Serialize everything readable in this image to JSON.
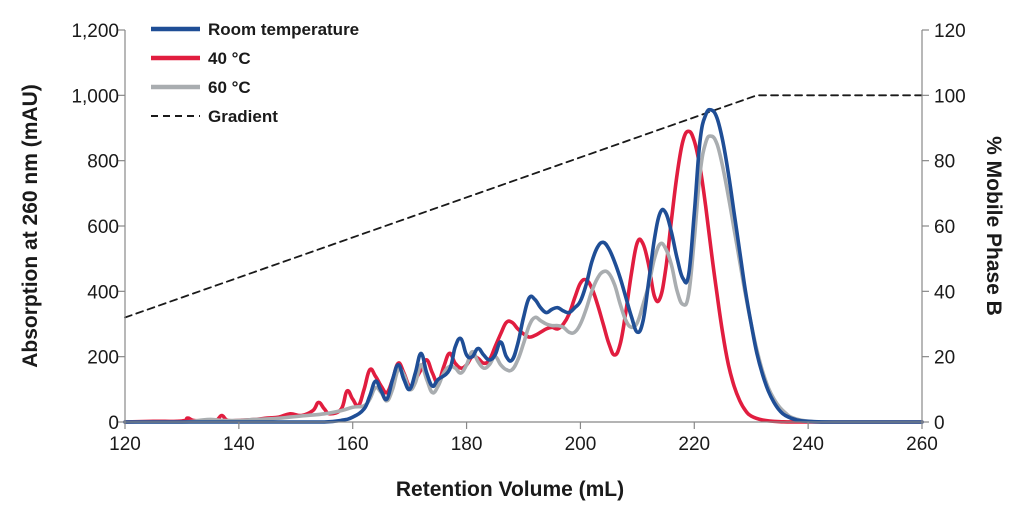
{
  "chart_data": {
    "type": "line",
    "title": "",
    "xlabel": "Retention Volume (mL)",
    "ylabel": "Absorption at 260 nm (mAU)",
    "y2label": "% Mobile Phase B",
    "xlim": [
      120,
      260
    ],
    "ylim": [
      0,
      1200
    ],
    "y2lim": [
      0,
      120
    ],
    "xticks": [
      120,
      140,
      160,
      180,
      200,
      220,
      240,
      260
    ],
    "xtick_labels": [
      "120",
      "140",
      "160",
      "180",
      "200",
      "220",
      "240",
      "260"
    ],
    "yticks": [
      0,
      200,
      400,
      600,
      800,
      1000,
      1200
    ],
    "ytick_labels": [
      "0",
      "200",
      "400",
      "600",
      "800",
      "1,000",
      "1,200"
    ],
    "y2ticks": [
      0,
      20,
      40,
      60,
      80,
      100,
      120
    ],
    "y2tick_labels": [
      "0",
      "20",
      "40",
      "60",
      "80",
      "100",
      "120"
    ],
    "legend_position": "top-left",
    "grid": false,
    "series": [
      {
        "name": "Room temperature",
        "color": "#1f4e96",
        "axis": "left",
        "dash": "solid",
        "points": [
          [
            120,
            0
          ],
          [
            150,
            0
          ],
          [
            155,
            0
          ],
          [
            158,
            5
          ],
          [
            160,
            15
          ],
          [
            162,
            40
          ],
          [
            163,
            80
          ],
          [
            164,
            125
          ],
          [
            165,
            95
          ],
          [
            166,
            70
          ],
          [
            167,
            130
          ],
          [
            168,
            175
          ],
          [
            169,
            130
          ],
          [
            170,
            100
          ],
          [
            171,
            150
          ],
          [
            172,
            210
          ],
          [
            173,
            150
          ],
          [
            174,
            110
          ],
          [
            175,
            130
          ],
          [
            177,
            160
          ],
          [
            178,
            230
          ],
          [
            179,
            255
          ],
          [
            180,
            205
          ],
          [
            181,
            200
          ],
          [
            182,
            225
          ],
          [
            183,
            205
          ],
          [
            184,
            190
          ],
          [
            185,
            205
          ],
          [
            186,
            245
          ],
          [
            187,
            200
          ],
          [
            188,
            190
          ],
          [
            189,
            240
          ],
          [
            190,
            320
          ],
          [
            191,
            380
          ],
          [
            192,
            375
          ],
          [
            193,
            350
          ],
          [
            194,
            335
          ],
          [
            195,
            345
          ],
          [
            196,
            350
          ],
          [
            197,
            340
          ],
          [
            198,
            335
          ],
          [
            199,
            350
          ],
          [
            200,
            370
          ],
          [
            201,
            420
          ],
          [
            202,
            490
          ],
          [
            203,
            535
          ],
          [
            204,
            550
          ],
          [
            205,
            530
          ],
          [
            206,
            490
          ],
          [
            207,
            440
          ],
          [
            208,
            380
          ],
          [
            209,
            320
          ],
          [
            210,
            275
          ],
          [
            211,
            310
          ],
          [
            212,
            430
          ],
          [
            213,
            560
          ],
          [
            214,
            640
          ],
          [
            215,
            640
          ],
          [
            216,
            580
          ],
          [
            217,
            500
          ],
          [
            218,
            440
          ],
          [
            219,
            450
          ],
          [
            220,
            640
          ],
          [
            221,
            860
          ],
          [
            222,
            940
          ],
          [
            223,
            955
          ],
          [
            224,
            930
          ],
          [
            225,
            860
          ],
          [
            226,
            760
          ],
          [
            227,
            640
          ],
          [
            228,
            520
          ],
          [
            229,
            400
          ],
          [
            230,
            300
          ],
          [
            231,
            210
          ],
          [
            232,
            145
          ],
          [
            233,
            95
          ],
          [
            234,
            60
          ],
          [
            235,
            35
          ],
          [
            236,
            20
          ],
          [
            238,
            6
          ],
          [
            240,
            2
          ],
          [
            245,
            0
          ],
          [
            260,
            0
          ]
        ]
      },
      {
        "name": "40 °C",
        "color": "#e11d3f",
        "axis": "left",
        "dash": "solid",
        "points": [
          [
            120,
            0
          ],
          [
            125,
            2
          ],
          [
            130,
            3
          ],
          [
            131,
            12
          ],
          [
            132,
            5
          ],
          [
            134,
            3
          ],
          [
            136,
            5
          ],
          [
            137,
            20
          ],
          [
            138,
            5
          ],
          [
            140,
            5
          ],
          [
            143,
            8
          ],
          [
            145,
            12
          ],
          [
            147,
            15
          ],
          [
            149,
            25
          ],
          [
            151,
            20
          ],
          [
            153,
            35
          ],
          [
            154,
            60
          ],
          [
            155,
            40
          ],
          [
            156,
            25
          ],
          [
            158,
            40
          ],
          [
            159,
            95
          ],
          [
            160,
            70
          ],
          [
            161,
            50
          ],
          [
            162,
            100
          ],
          [
            163,
            160
          ],
          [
            164,
            140
          ],
          [
            165,
            110
          ],
          [
            166,
            90
          ],
          [
            167,
            130
          ],
          [
            168,
            180
          ],
          [
            169,
            150
          ],
          [
            170,
            110
          ],
          [
            171,
            130
          ],
          [
            172,
            160
          ],
          [
            173,
            190
          ],
          [
            174,
            150
          ],
          [
            175,
            120
          ],
          [
            176,
            170
          ],
          [
            177,
            210
          ],
          [
            178,
            180
          ],
          [
            179,
            165
          ],
          [
            180,
            175
          ],
          [
            181,
            200
          ],
          [
            182,
            195
          ],
          [
            183,
            180
          ],
          [
            184,
            190
          ],
          [
            185,
            230
          ],
          [
            186,
            270
          ],
          [
            187,
            305
          ],
          [
            188,
            305
          ],
          [
            189,
            285
          ],
          [
            190,
            270
          ],
          [
            191,
            260
          ],
          [
            192,
            265
          ],
          [
            193,
            275
          ],
          [
            194,
            285
          ],
          [
            195,
            290
          ],
          [
            196,
            285
          ],
          [
            197,
            300
          ],
          [
            198,
            330
          ],
          [
            199,
            380
          ],
          [
            200,
            425
          ],
          [
            201,
            435
          ],
          [
            202,
            410
          ],
          [
            203,
            360
          ],
          [
            204,
            300
          ],
          [
            205,
            240
          ],
          [
            206,
            205
          ],
          [
            207,
            240
          ],
          [
            208,
            340
          ],
          [
            209,
            460
          ],
          [
            210,
            550
          ],
          [
            211,
            545
          ],
          [
            212,
            480
          ],
          [
            213,
            385
          ],
          [
            214,
            380
          ],
          [
            215,
            470
          ],
          [
            216,
            620
          ],
          [
            217,
            760
          ],
          [
            218,
            860
          ],
          [
            219,
            890
          ],
          [
            220,
            860
          ],
          [
            221,
            780
          ],
          [
            222,
            660
          ],
          [
            223,
            520
          ],
          [
            224,
            390
          ],
          [
            225,
            270
          ],
          [
            226,
            175
          ],
          [
            227,
            110
          ],
          [
            228,
            65
          ],
          [
            229,
            35
          ],
          [
            230,
            18
          ],
          [
            232,
            6
          ],
          [
            235,
            1
          ],
          [
            240,
            0
          ],
          [
            260,
            0
          ]
        ]
      },
      {
        "name": "60 °C",
        "color": "#a9adb0",
        "axis": "left",
        "dash": "solid",
        "points": [
          [
            120,
            0
          ],
          [
            130,
            0
          ],
          [
            133,
            5
          ],
          [
            135,
            8
          ],
          [
            137,
            5
          ],
          [
            140,
            5
          ],
          [
            143,
            8
          ],
          [
            146,
            10
          ],
          [
            149,
            15
          ],
          [
            152,
            20
          ],
          [
            155,
            25
          ],
          [
            158,
            35
          ],
          [
            160,
            45
          ],
          [
            162,
            50
          ],
          [
            163,
            70
          ],
          [
            164,
            105
          ],
          [
            165,
            90
          ],
          [
            166,
            65
          ],
          [
            167,
            100
          ],
          [
            168,
            160
          ],
          [
            169,
            145
          ],
          [
            170,
            100
          ],
          [
            171,
            120
          ],
          [
            172,
            175
          ],
          [
            173,
            130
          ],
          [
            174,
            90
          ],
          [
            175,
            110
          ],
          [
            176,
            150
          ],
          [
            177,
            170
          ],
          [
            178,
            165
          ],
          [
            179,
            150
          ],
          [
            180,
            175
          ],
          [
            181,
            215
          ],
          [
            182,
            185
          ],
          [
            183,
            165
          ],
          [
            184,
            175
          ],
          [
            185,
            200
          ],
          [
            186,
            175
          ],
          [
            187,
            160
          ],
          [
            188,
            160
          ],
          [
            189,
            190
          ],
          [
            190,
            240
          ],
          [
            191,
            295
          ],
          [
            192,
            320
          ],
          [
            193,
            310
          ],
          [
            194,
            300
          ],
          [
            195,
            295
          ],
          [
            196,
            295
          ],
          [
            197,
            290
          ],
          [
            198,
            275
          ],
          [
            199,
            275
          ],
          [
            200,
            300
          ],
          [
            201,
            345
          ],
          [
            202,
            400
          ],
          [
            203,
            440
          ],
          [
            204,
            460
          ],
          [
            205,
            455
          ],
          [
            206,
            420
          ],
          [
            207,
            360
          ],
          [
            208,
            310
          ],
          [
            209,
            290
          ],
          [
            210,
            305
          ],
          [
            211,
            360
          ],
          [
            212,
            420
          ],
          [
            213,
            500
          ],
          [
            214,
            545
          ],
          [
            215,
            530
          ],
          [
            216,
            480
          ],
          [
            217,
            400
          ],
          [
            218,
            360
          ],
          [
            219,
            390
          ],
          [
            220,
            560
          ],
          [
            221,
            760
          ],
          [
            222,
            855
          ],
          [
            223,
            875
          ],
          [
            224,
            850
          ],
          [
            225,
            780
          ],
          [
            226,
            690
          ],
          [
            227,
            590
          ],
          [
            228,
            490
          ],
          [
            229,
            390
          ],
          [
            230,
            300
          ],
          [
            231,
            220
          ],
          [
            232,
            155
          ],
          [
            233,
            105
          ],
          [
            234,
            70
          ],
          [
            235,
            45
          ],
          [
            236,
            28
          ],
          [
            237,
            15
          ],
          [
            239,
            5
          ],
          [
            241,
            1
          ],
          [
            245,
            0
          ],
          [
            260,
            0
          ]
        ]
      },
      {
        "name": "Gradient",
        "color": "#1a1a1a",
        "axis": "right",
        "dash": "dashed",
        "points": [
          [
            120,
            32
          ],
          [
            231,
            100
          ],
          [
            260,
            100
          ]
        ]
      }
    ]
  }
}
